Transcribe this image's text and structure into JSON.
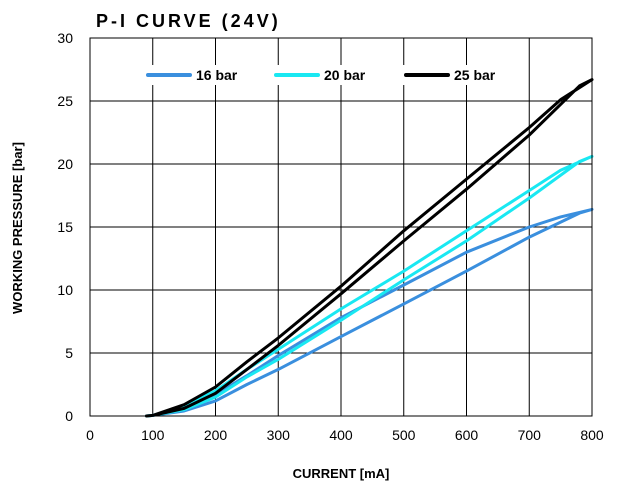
{
  "chart_data": {
    "type": "line",
    "title": "P-I CURVE (24V)",
    "xlabel": "CURRENT [mA]",
    "ylabel": "WORKING PRESSURE [bar]",
    "xlim": [
      0,
      800
    ],
    "ylim": [
      0,
      30
    ],
    "xticks": [
      0,
      100,
      200,
      300,
      400,
      500,
      600,
      700,
      800
    ],
    "yticks": [
      0,
      5,
      10,
      15,
      20,
      25,
      30
    ],
    "grid": true,
    "legend_position": "top",
    "series": [
      {
        "name": "16 bar",
        "color": "#3a8fde",
        "x": [
          90,
          100,
          150,
          200,
          250,
          300,
          400,
          500,
          600,
          700,
          750,
          800,
          780,
          700,
          600,
          500,
          400,
          300,
          250,
          200,
          150,
          100,
          90
        ],
        "y": [
          0,
          0.05,
          0.7,
          1.7,
          3.2,
          4.8,
          7.8,
          10.4,
          13.0,
          15.0,
          15.8,
          16.4,
          16.1,
          14.2,
          11.5,
          8.9,
          6.3,
          3.7,
          2.5,
          1.2,
          0.4,
          0.05,
          0
        ]
      },
      {
        "name": "20 bar",
        "color": "#19e8f2",
        "x": [
          90,
          100,
          150,
          200,
          250,
          300,
          400,
          500,
          600,
          700,
          750,
          800,
          780,
          700,
          600,
          500,
          400,
          300,
          250,
          200,
          150,
          100,
          90
        ],
        "y": [
          0,
          0.05,
          0.8,
          2.0,
          3.7,
          5.3,
          8.5,
          11.5,
          14.7,
          17.9,
          19.5,
          20.6,
          20.2,
          17.3,
          13.9,
          10.8,
          7.6,
          4.5,
          3.1,
          1.5,
          0.5,
          0.05,
          0
        ]
      },
      {
        "name": "25 bar",
        "color": "#000000",
        "x": [
          90,
          100,
          150,
          200,
          250,
          300,
          400,
          500,
          600,
          700,
          750,
          800,
          780,
          700,
          600,
          500,
          400,
          300,
          250,
          200,
          150,
          100,
          90
        ],
        "y": [
          0,
          0.05,
          0.9,
          2.3,
          4.3,
          6.2,
          10.3,
          14.7,
          18.8,
          22.9,
          25.1,
          26.7,
          26.2,
          22.3,
          18.0,
          13.9,
          9.7,
          5.6,
          3.7,
          1.8,
          0.6,
          0.05,
          0
        ]
      }
    ]
  }
}
